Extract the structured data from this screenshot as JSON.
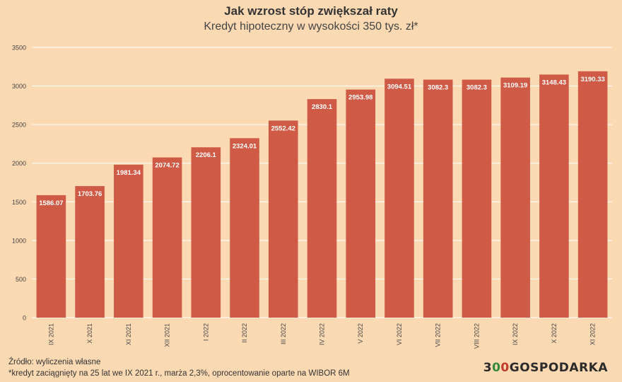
{
  "header": {
    "title": "Jak wzrost stóp zwiększał raty",
    "subtitle": "Kredyt hipoteczny w wysokości 350 tys. zł*"
  },
  "footer": {
    "source": "Źródło: wyliczenia własne",
    "footnote": "*kredyt zaciągnięty na 25 lat we IX 2021 r., marża 2,3%, oprocentowanie oparte na WIBOR 6M",
    "logo": {
      "part1": "3",
      "part2": "0",
      "part3": "0",
      "part4": "GOSPODARKA"
    }
  },
  "colors": {
    "background": "#fbd9b3",
    "bar": "#cf5b47",
    "gridline": "#ffffff",
    "logo_green": "#2e8b3a",
    "logo_red": "#c0392b"
  },
  "chart_data": {
    "type": "bar",
    "title": "Jak wzrost stóp zwiększał raty",
    "subtitle": "Kredyt hipoteczny w wysokości 350 tys. zł*",
    "xlabel": "",
    "ylabel": "",
    "categories": [
      "IX 2021",
      "X 2021",
      "XI 2021",
      "XII 2021",
      "I 2022",
      "II 2022",
      "III 2022",
      "IV 2022",
      "V 2022",
      "VI 2022",
      "VII 2022",
      "VIII 2022",
      "IX 2022",
      "X 2022",
      "XI 2022"
    ],
    "values": [
      1586.07,
      1703.76,
      1981.34,
      2074.72,
      2206.1,
      2324.01,
      2552.42,
      2830.1,
      2953.98,
      3094.51,
      3082.3,
      3082.3,
      3109.19,
      3148.43,
      3190.33
    ],
    "value_labels": [
      "1586.07",
      "1703.76",
      "1981.34",
      "2074.72",
      "2206.1",
      "2324.01",
      "2552.42",
      "2830.1",
      "2953.98",
      "3094.51",
      "3082.3",
      "3082.3",
      "3109.19",
      "3148.43",
      "3190.33"
    ],
    "yticks": [
      0,
      500,
      1000,
      1500,
      2000,
      2500,
      3000,
      3500
    ],
    "ylim": [
      0,
      3500
    ],
    "grid": true,
    "legend": "none"
  }
}
